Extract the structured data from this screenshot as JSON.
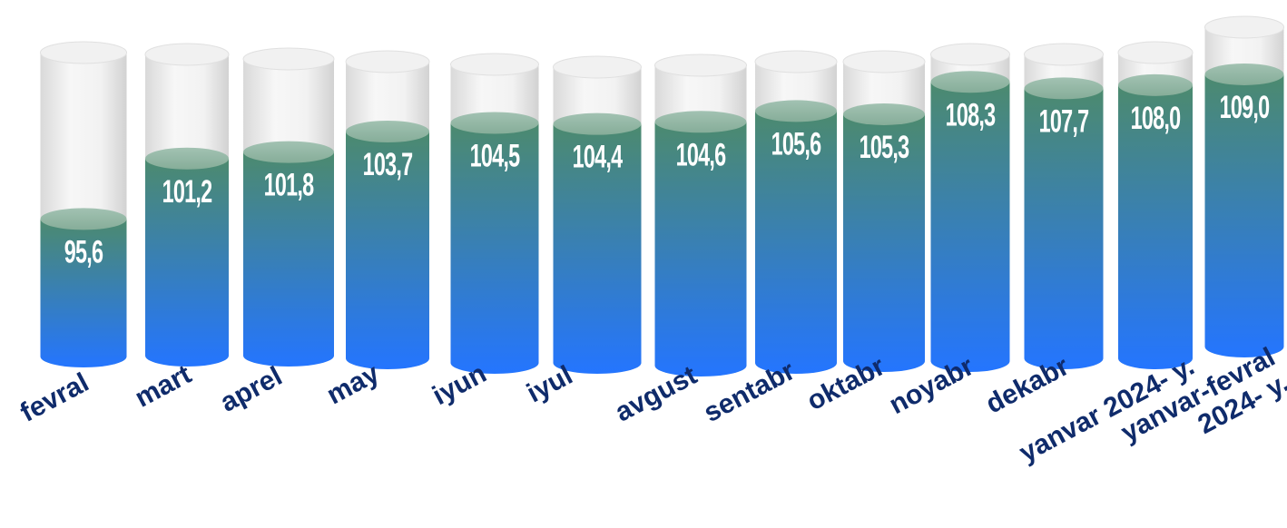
{
  "chart_data": {
    "type": "bar",
    "style": "3d-cylinder",
    "categories": [
      "fevral",
      "mart",
      "aprel",
      "may",
      "iyun",
      "iyul",
      "avgust",
      "sentabr",
      "oktabr",
      "noyabr",
      "dekabr",
      "yanvar 2024- y.",
      "yanvar-fevral 2024- y."
    ],
    "values": [
      95.6,
      101.2,
      101.8,
      103.7,
      104.5,
      104.4,
      104.6,
      105.6,
      105.3,
      108.3,
      107.7,
      108.0,
      109.0
    ],
    "value_labels": [
      "95,6",
      "101,2",
      "101,8",
      "103,7",
      "104,5",
      "104,4",
      "104,6",
      "105,6",
      "105,3",
      "108,3",
      "107,7",
      "108,0",
      "109,0"
    ],
    "title": "",
    "xlabel": "",
    "ylabel": "",
    "legend": "none",
    "grid": false,
    "colors": {
      "bar_top": "#4c8a6e",
      "bar_bottom": "#2475ff",
      "cap": "#93b8a5",
      "background_cylinder": "#e6e6e6",
      "category_text": "#0f2b6b",
      "value_text": "#ffffff"
    }
  }
}
